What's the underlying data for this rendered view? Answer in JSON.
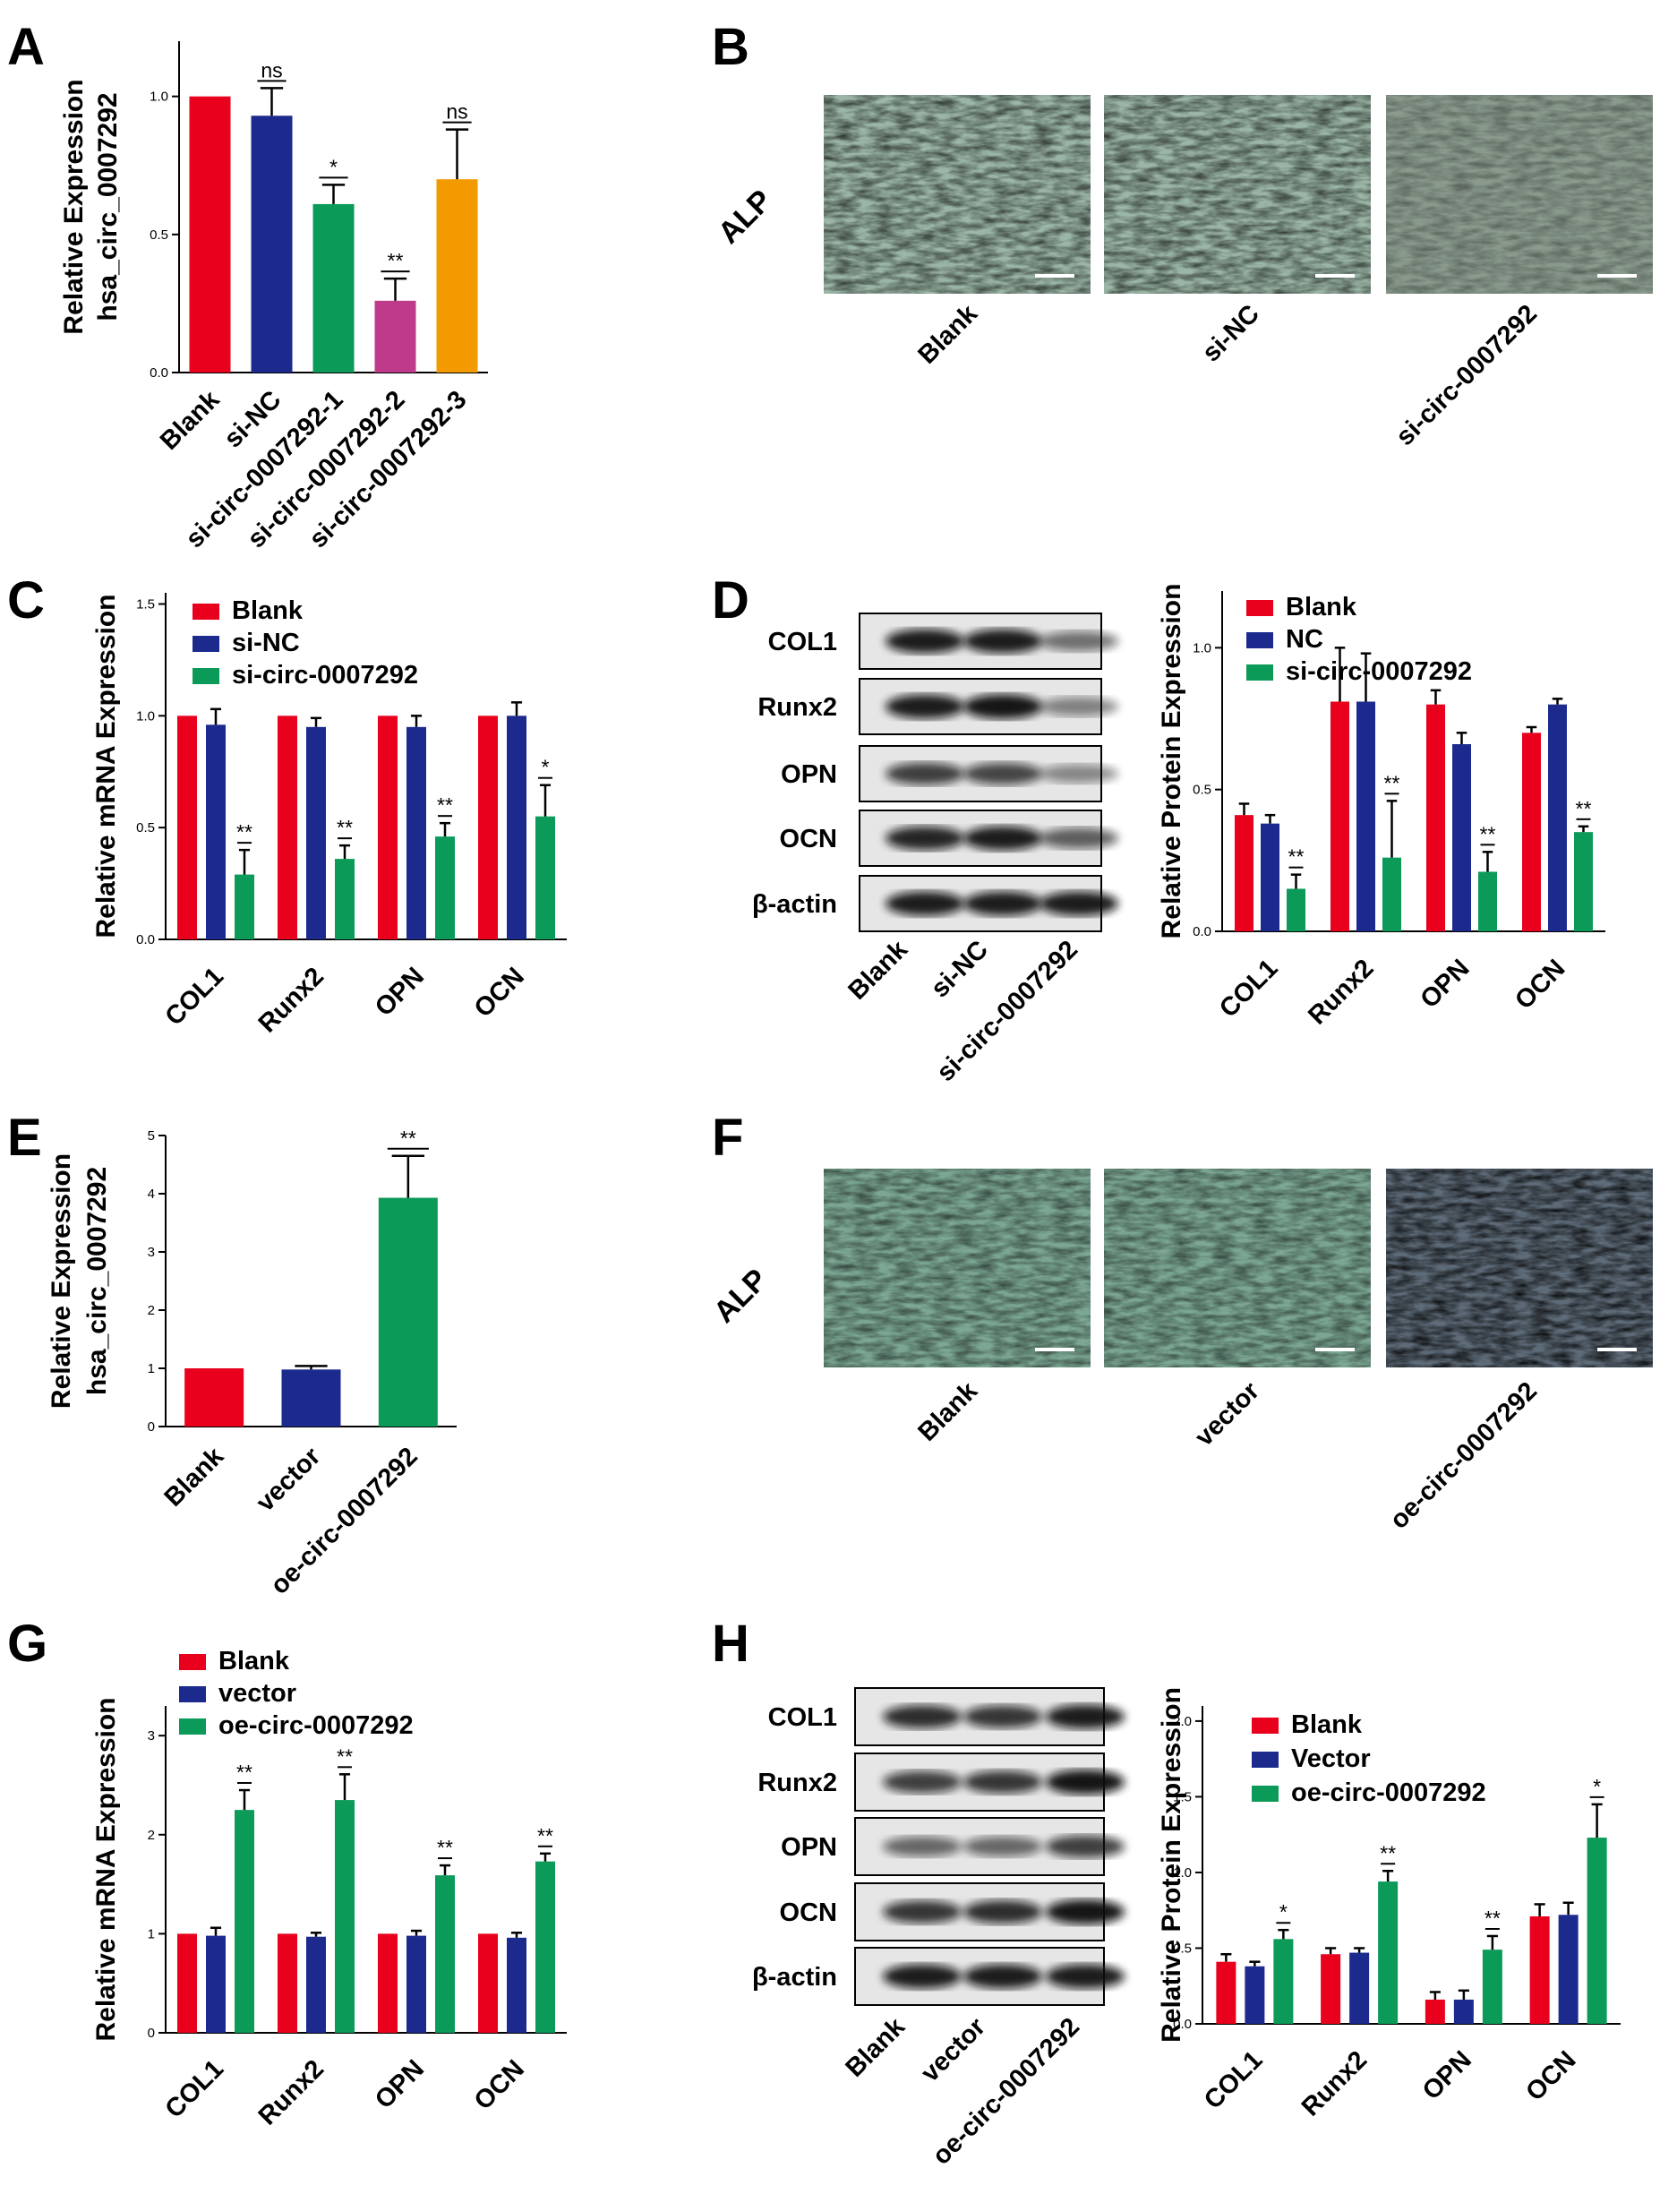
{
  "panels": {
    "A": "A",
    "B": "B",
    "C": "C",
    "D": "D",
    "E": "E",
    "F": "F",
    "G": "G",
    "H": "H"
  },
  "colors": {
    "red": "#E8001C",
    "navy": "#1C2A8E",
    "green": "#0B9A58",
    "magenta": "#C03A8C",
    "orange": "#F29A00"
  },
  "micrographs": {
    "B": {
      "row_label": "ALP",
      "labels": [
        "Blank",
        "si-NC",
        "si-circ-0007292"
      ],
      "stain_levels": [
        "high",
        "high",
        "low"
      ]
    },
    "F": {
      "row_label": "ALP",
      "labels": [
        "Blank",
        "vector",
        "oe-circ-0007292"
      ],
      "stain_levels": [
        "medium",
        "medium",
        "very high"
      ]
    }
  },
  "blots": {
    "D": {
      "rows": [
        "COL1",
        "Runx2",
        "OPN",
        "OCN",
        "β-actin"
      ],
      "lanes": [
        "Blank",
        "si-NC",
        "si-circ-0007292"
      ],
      "band_intensity": [
        [
          0.9,
          0.9,
          0.4
        ],
        [
          0.9,
          0.95,
          0.3
        ],
        [
          0.7,
          0.65,
          0.25
        ],
        [
          0.85,
          0.9,
          0.5
        ],
        [
          0.9,
          0.9,
          0.9
        ]
      ]
    },
    "H": {
      "rows": [
        "COL1",
        "Runx2",
        "OPN",
        "OCN",
        "β-actin"
      ],
      "lanes": [
        "Blank",
        "vector",
        "oe-circ-0007292"
      ],
      "band_intensity": [
        [
          0.8,
          0.75,
          0.9
        ],
        [
          0.7,
          0.75,
          0.95
        ],
        [
          0.45,
          0.45,
          0.7
        ],
        [
          0.75,
          0.8,
          0.95
        ],
        [
          0.9,
          0.9,
          0.9
        ]
      ]
    }
  },
  "chart_data": [
    {
      "panel": "A",
      "type": "bar",
      "ylabel": [
        "Relative Expression",
        "hsa_circ_0007292"
      ],
      "ylim": [
        0,
        1.2
      ],
      "yticks": [
        "0.0",
        "0.5",
        "1.0"
      ],
      "ytick_values": [
        0,
        0.5,
        1.0
      ],
      "categories": [
        "Blank",
        "si-NC",
        "si-circ-0007292-1",
        "si-circ-0007292-2",
        "si-circ-0007292-3"
      ],
      "values": [
        1.0,
        0.93,
        0.61,
        0.26,
        0.7
      ],
      "errors": [
        0,
        0.1,
        0.07,
        0.08,
        0.18
      ],
      "significance": [
        "",
        "ns",
        "*",
        "**",
        "ns"
      ],
      "bar_colors": [
        "#E8001C",
        "#1C2A8E",
        "#0B9A58",
        "#C03A8C",
        "#F29A00"
      ]
    },
    {
      "panel": "C",
      "type": "bar",
      "ylabel": [
        "Relative mRNA Expression"
      ],
      "ylim": [
        0,
        1.55
      ],
      "yticks": [
        "0.0",
        "0.5",
        "1.0",
        "1.5"
      ],
      "ytick_values": [
        0,
        0.5,
        1.0,
        1.5
      ],
      "categories": [
        "COL1",
        "Runx2",
        "OPN",
        "OCN"
      ],
      "legend_position": "top-left",
      "series": [
        {
          "name": "Blank",
          "color": "#E8001C",
          "values": [
            1.0,
            1.0,
            1.0,
            1.0
          ],
          "errors": [
            0,
            0,
            0,
            0
          ],
          "significance": [
            "",
            "",
            "",
            ""
          ]
        },
        {
          "name": "si-NC",
          "color": "#1C2A8E",
          "values": [
            0.96,
            0.95,
            0.95,
            1.0
          ],
          "errors": [
            0.07,
            0.04,
            0.05,
            0.06
          ],
          "significance": [
            "",
            "",
            "",
            ""
          ]
        },
        {
          "name": "si-circ-0007292",
          "color": "#0B9A58",
          "values": [
            0.29,
            0.36,
            0.46,
            0.55
          ],
          "errors": [
            0.11,
            0.06,
            0.06,
            0.14
          ],
          "significance": [
            "**",
            "**",
            "**",
            "*"
          ]
        }
      ]
    },
    {
      "panel": "D",
      "type": "bar",
      "ylabel": [
        "Relative Protein Expression"
      ],
      "ylim": [
        0,
        1.2
      ],
      "yticks": [
        "0.0",
        "0.5",
        "1.0"
      ],
      "ytick_values": [
        0,
        0.5,
        1.0
      ],
      "categories": [
        "COL1",
        "Runx2",
        "OPN",
        "OCN"
      ],
      "legend_position": "top",
      "series": [
        {
          "name": "Blank",
          "color": "#E8001C",
          "values": [
            0.41,
            0.81,
            0.8,
            0.7
          ],
          "errors": [
            0.04,
            0.19,
            0.05,
            0.02
          ],
          "significance": [
            "",
            "",
            "",
            ""
          ]
        },
        {
          "name": "NC",
          "color": "#1C2A8E",
          "values": [
            0.38,
            0.81,
            0.66,
            0.8
          ],
          "errors": [
            0.03,
            0.17,
            0.04,
            0.02
          ],
          "significance": [
            "",
            "",
            "",
            ""
          ]
        },
        {
          "name": "si-circ-0007292",
          "color": "#0B9A58",
          "values": [
            0.15,
            0.26,
            0.21,
            0.35
          ],
          "errors": [
            0.05,
            0.2,
            0.07,
            0.02
          ],
          "significance": [
            "**",
            "**",
            "**",
            "**"
          ]
        }
      ]
    },
    {
      "panel": "E",
      "type": "bar",
      "ylabel": [
        "Relative Expression",
        "hsa_circ_0007292"
      ],
      "ylim": [
        0,
        5
      ],
      "yticks": [
        "0",
        "1",
        "2",
        "3",
        "4",
        "5"
      ],
      "ytick_values": [
        0,
        1,
        2,
        3,
        4,
        5
      ],
      "categories": [
        "Blank",
        "vector",
        "oe-circ-0007292"
      ],
      "values": [
        1.0,
        0.98,
        3.93
      ],
      "errors": [
        0,
        0.06,
        0.72
      ],
      "significance": [
        "",
        "",
        "**"
      ],
      "bar_colors": [
        "#E8001C",
        "#1C2A8E",
        "#0B9A58"
      ]
    },
    {
      "panel": "G",
      "type": "bar",
      "ylabel": [
        "Relative mRNA Expression"
      ],
      "ylim": [
        0,
        3.3
      ],
      "yticks": [
        "0",
        "1",
        "2",
        "3"
      ],
      "ytick_values": [
        0,
        1,
        2,
        3
      ],
      "categories": [
        "COL1",
        "Runx2",
        "OPN",
        "OCN"
      ],
      "legend_position": "top-left",
      "series": [
        {
          "name": "Blank",
          "color": "#E8001C",
          "values": [
            1.0,
            1.0,
            1.0,
            1.0
          ],
          "errors": [
            0,
            0,
            0,
            0
          ],
          "significance": [
            "",
            "",
            "",
            ""
          ]
        },
        {
          "name": "vector",
          "color": "#1C2A8E",
          "values": [
            0.98,
            0.97,
            0.98,
            0.96
          ],
          "errors": [
            0.08,
            0.04,
            0.05,
            0.05
          ],
          "significance": [
            "",
            "",
            "",
            ""
          ]
        },
        {
          "name": "oe-circ-0007292",
          "color": "#0B9A58",
          "values": [
            2.25,
            2.35,
            1.59,
            1.73
          ],
          "errors": [
            0.2,
            0.26,
            0.1,
            0.08
          ],
          "significance": [
            "**",
            "**",
            "**",
            "**"
          ]
        }
      ]
    },
    {
      "panel": "H",
      "type": "bar",
      "ylabel": [
        "Relative Protein Expression"
      ],
      "ylim": [
        0,
        2.1
      ],
      "yticks": [
        "0.0",
        "0.5",
        "1.0",
        "1.5",
        "2.0"
      ],
      "ytick_values": [
        0,
        0.5,
        1.0,
        1.5,
        2.0
      ],
      "categories": [
        "COL1",
        "Runx2",
        "OPN",
        "OCN"
      ],
      "legend_position": "top",
      "series": [
        {
          "name": "Blank",
          "color": "#E8001C",
          "values": [
            0.41,
            0.46,
            0.16,
            0.71
          ],
          "errors": [
            0.05,
            0.04,
            0.05,
            0.08
          ],
          "significance": [
            "",
            "",
            "",
            ""
          ]
        },
        {
          "name": "Vector",
          "color": "#1C2A8E",
          "values": [
            0.38,
            0.47,
            0.16,
            0.72
          ],
          "errors": [
            0.03,
            0.03,
            0.06,
            0.08
          ],
          "significance": [
            "",
            "",
            "",
            ""
          ]
        },
        {
          "name": "oe-circ-0007292",
          "color": "#0B9A58",
          "values": [
            0.56,
            0.94,
            0.49,
            1.23
          ],
          "errors": [
            0.06,
            0.07,
            0.09,
            0.22
          ],
          "significance": [
            "*",
            "**",
            "**",
            "*"
          ]
        }
      ]
    }
  ]
}
